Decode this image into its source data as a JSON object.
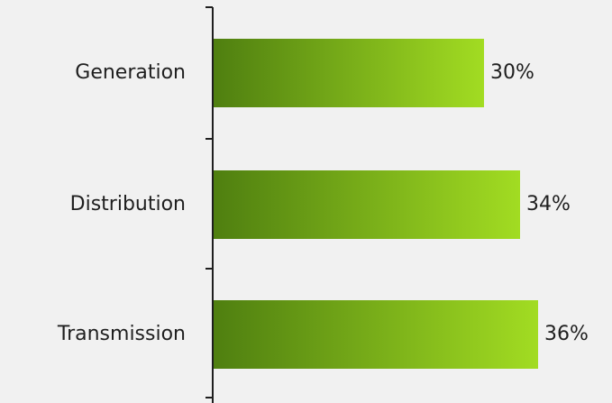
{
  "chart_data": {
    "type": "bar",
    "orientation": "horizontal",
    "categories": [
      "Generation",
      "Distribution",
      "Transmission"
    ],
    "values": [
      30,
      34,
      36
    ],
    "value_labels": [
      "30%",
      "34%",
      "36%"
    ],
    "xlim": [
      0,
      44
    ],
    "title": "",
    "xlabel": "",
    "ylabel": "",
    "grid": false,
    "legend": false
  },
  "colors": {
    "background": "#f1f1f1",
    "bar_start": "#4f7f10",
    "bar_end": "#a2dc22",
    "axis": "#1f1f1f",
    "text": "#1f1f1f"
  }
}
